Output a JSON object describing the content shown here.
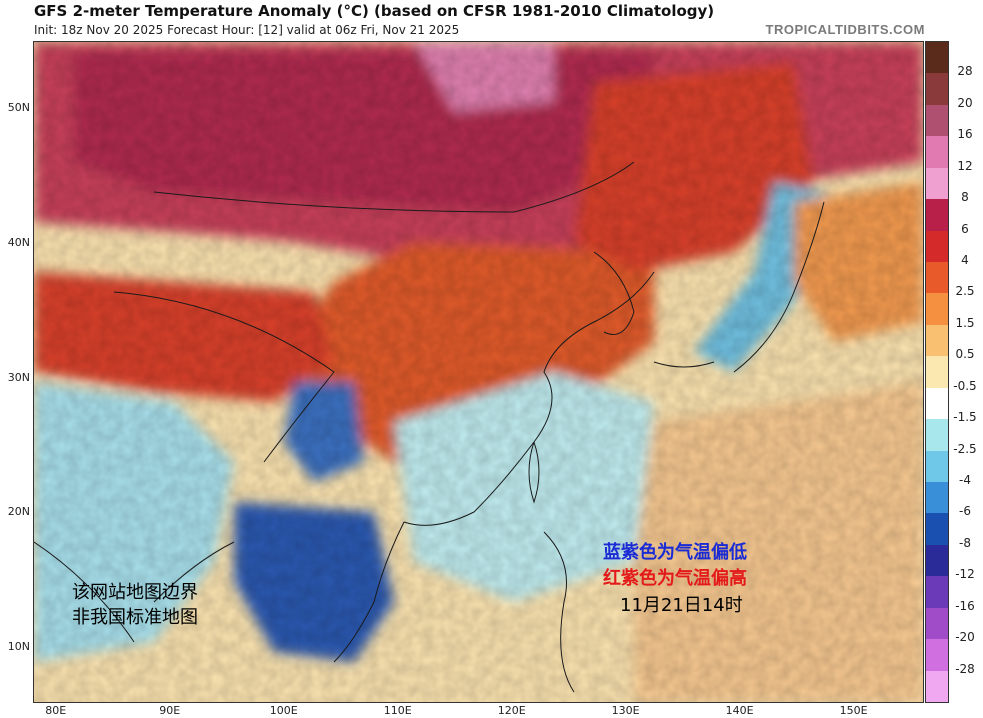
{
  "header": {
    "title": "GFS 2-meter Temperature Anomaly (°C) (based on CFSR 1981-2010 Climatology)",
    "subtitle": "Init: 18z Nov 20 2025   Forecast Hour: [12]   valid at 06z Fri, Nov 21 2025",
    "brand": "TROPICALTIDBITS.COM"
  },
  "map": {
    "region": "East Asia",
    "lat_labels": [
      "50N",
      "40N",
      "30N",
      "20N",
      "10N"
    ],
    "lat_values": [
      50,
      40,
      30,
      20,
      10
    ],
    "lon_labels": [
      "80E",
      "90E",
      "100E",
      "110E",
      "120E",
      "130E",
      "140E",
      "150E"
    ],
    "lon_values": [
      80,
      90,
      100,
      110,
      120,
      130,
      140,
      150
    ],
    "lat_range": [
      6,
      55
    ],
    "lon_range": [
      78,
      156
    ]
  },
  "colorbar": {
    "labels": [
      "28",
      "20",
      "16",
      "12",
      "8",
      "6",
      "4",
      "2.5",
      "1.5",
      "0.5",
      "-0.5",
      "-1.5",
      "-2.5",
      "-4",
      "-6",
      "-8",
      "-12",
      "-16",
      "-20",
      "-28"
    ],
    "colors": [
      "#5a2a1a",
      "#8a3a3a",
      "#b05070",
      "#e07ab0",
      "#f0a0d0",
      "#b8204a",
      "#d42a2a",
      "#e85a2a",
      "#f49040",
      "#f8c070",
      "#fbe8b0",
      "#ffffff",
      "#a8e8ec",
      "#70c8e8",
      "#3a90d8",
      "#1a50b0",
      "#2a2a98",
      "#6a3ab8",
      "#a04cc8",
      "#d070e0",
      "#f0a8f0"
    ]
  },
  "annotations": {
    "note_line1": "该网站地图边界",
    "note_line2": "非我国标准地图",
    "legend_blue": "蓝紫色为气温偏低",
    "legend_red": "红紫色为气温偏高",
    "valid_time": "11月21日14时"
  }
}
